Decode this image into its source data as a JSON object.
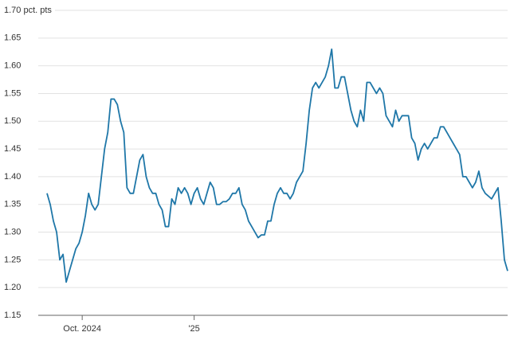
{
  "chart_data": {
    "type": "line",
    "categories": [
      null,
      null,
      null,
      null,
      null,
      null,
      null,
      null,
      null,
      null,
      null,
      "Oct. 2024",
      null,
      null,
      null,
      null,
      null,
      null,
      null,
      null,
      null,
      null,
      null,
      null,
      null,
      null,
      null,
      null,
      null,
      null,
      null,
      null,
      null,
      null,
      null,
      null,
      null,
      null,
      null,
      null,
      null,
      null,
      null,
      null,
      null,
      null,
      "'25",
      null,
      null,
      null,
      null,
      null,
      null,
      null,
      null,
      null,
      null,
      null,
      null,
      null,
      null,
      null,
      null,
      null,
      null,
      null,
      null,
      null,
      null,
      null,
      null,
      null,
      null,
      null,
      null,
      null,
      null,
      null,
      null,
      null,
      null,
      null,
      null,
      null,
      null,
      null,
      null,
      null,
      null,
      null,
      null,
      null,
      null,
      null,
      null,
      null,
      null,
      null,
      null,
      null,
      null,
      null,
      null,
      null,
      null,
      null,
      null,
      null,
      null,
      null,
      null,
      null,
      null,
      null,
      null,
      null,
      null,
      null,
      null,
      null,
      null,
      null,
      null,
      null,
      null,
      null,
      null,
      null,
      null,
      null,
      null,
      null,
      null,
      null,
      null,
      null,
      null,
      null,
      null,
      null,
      null,
      null,
      null,
      null,
      null
    ],
    "series": [
      {
        "color": "#1f77a8",
        "values": [
          1.37,
          1.35,
          1.32,
          1.3,
          1.25,
          1.26,
          1.21,
          1.23,
          1.25,
          1.27,
          1.28,
          1.3,
          1.33,
          1.37,
          1.35,
          1.34,
          1.35,
          1.4,
          1.45,
          1.48,
          1.54,
          1.54,
          1.53,
          1.5,
          1.48,
          1.38,
          1.37,
          1.37,
          1.4,
          1.43,
          1.44,
          1.4,
          1.38,
          1.37,
          1.37,
          1.35,
          1.34,
          1.31,
          1.31,
          1.36,
          1.35,
          1.38,
          1.37,
          1.38,
          1.37,
          1.35,
          1.37,
          1.38,
          1.36,
          1.35,
          1.37,
          1.39,
          1.38,
          1.35,
          1.35,
          1.355,
          1.355,
          1.36,
          1.37,
          1.37,
          1.38,
          1.35,
          1.34,
          1.32,
          1.31,
          1.3,
          1.29,
          1.295,
          1.295,
          1.32,
          1.32,
          1.35,
          1.37,
          1.38,
          1.37,
          1.37,
          1.36,
          1.37,
          1.39,
          1.4,
          1.41,
          1.46,
          1.52,
          1.56,
          1.57,
          1.56,
          1.57,
          1.58,
          1.6,
          1.63,
          1.56,
          1.56,
          1.58,
          1.58,
          1.55,
          1.52,
          1.5,
          1.49,
          1.52,
          1.5,
          1.57,
          1.57,
          1.56,
          1.55,
          1.56,
          1.55,
          1.51,
          1.5,
          1.49,
          1.52,
          1.5,
          1.51,
          1.51,
          1.51,
          1.47,
          1.46,
          1.43,
          1.45,
          1.46,
          1.45,
          1.46,
          1.47,
          1.47,
          1.49,
          1.49,
          1.48,
          1.47,
          1.46,
          1.45,
          1.44,
          1.4,
          1.4,
          1.39,
          1.38,
          1.39,
          1.41,
          1.38,
          1.37,
          1.365,
          1.36,
          1.37,
          1.38,
          1.32,
          1.25,
          1.23
        ]
      }
    ],
    "ylim": [
      1.15,
      1.7
    ],
    "yticks": [
      1.15,
      {
        "value": 1.2,
        "label": "1.20"
      },
      1.25,
      {
        "value": 1.3,
        "label": "1.30"
      },
      1.35,
      {
        "value": 1.4,
        "label": "1.40"
      },
      1.45,
      {
        "value": 1.5,
        "label": "1.50"
      },
      1.55,
      {
        "value": 1.6,
        "label": "1.60"
      },
      1.65,
      {
        "value": 1.7,
        "label": "1.70 pct. pts"
      }
    ],
    "grid": true
  }
}
